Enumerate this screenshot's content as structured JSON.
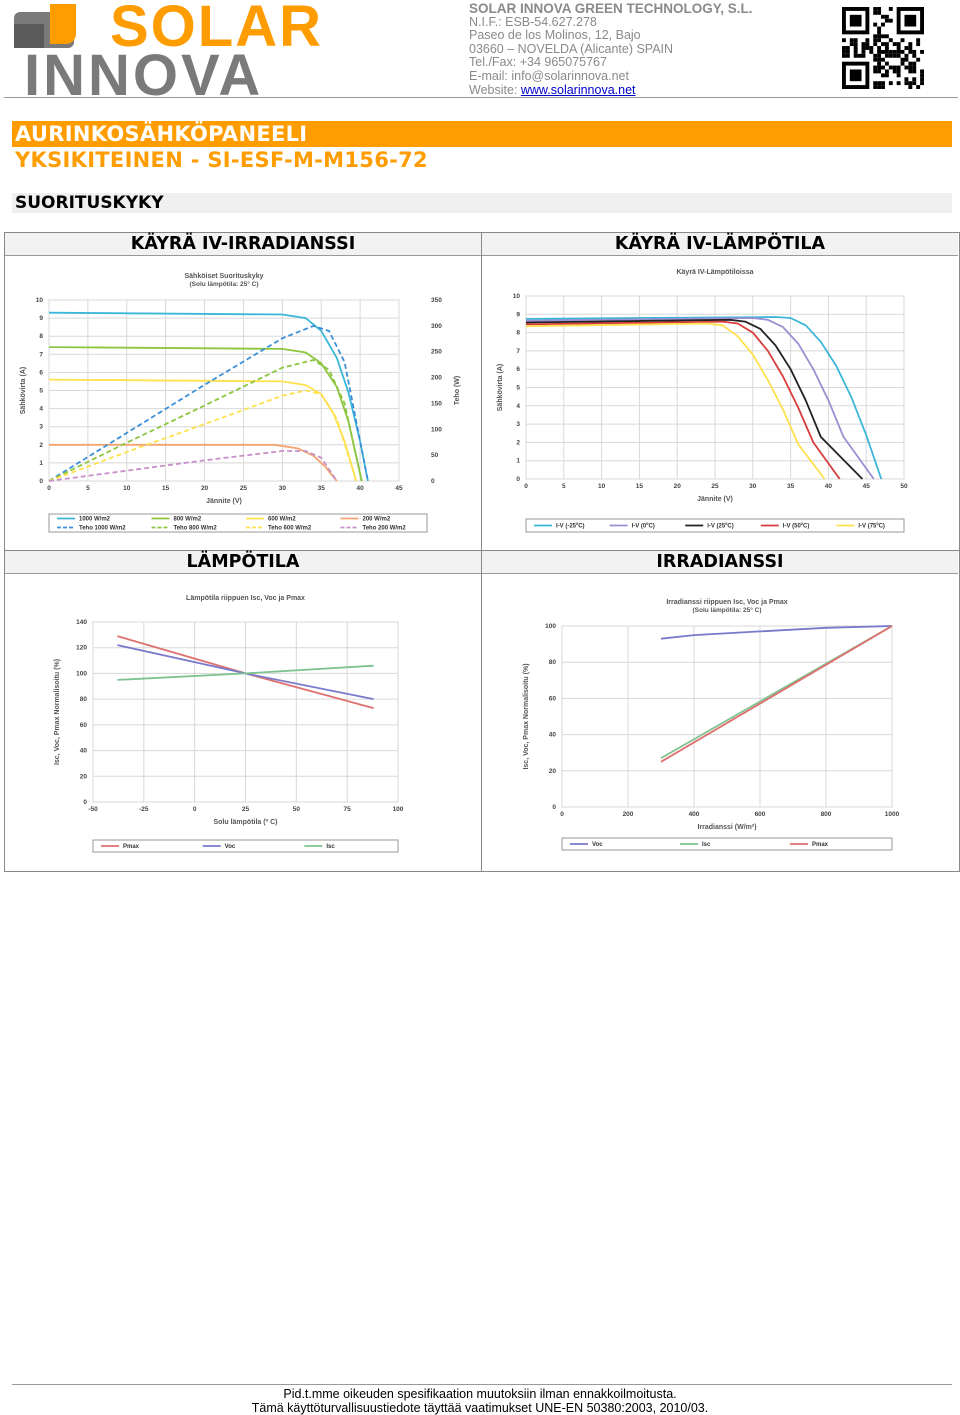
{
  "header": {
    "logo_top": "SOLAR",
    "logo_bottom": "INNOVA",
    "company_name": "SOLAR INNOVA GREEN TECHNOLOGY, S.L.",
    "nif": "N.I.F.: ESB-54.627.278",
    "address1": "Paseo de los Molinos, 12, Bajo",
    "address2": "03660 – NOVELDA (Alicante) SPAIN",
    "phone": "Tel./Fax: +34 965075767",
    "email": "E-mail: info@solarinnova.net",
    "website_label": "Website: ",
    "website_link": "www.solarinnova.net",
    "qr_icon": "qr-code-icon"
  },
  "title": {
    "line1": "AURINKOSÄHKÖPANEELI",
    "line2": "YKSIKITEINEN - SI-ESF-M-M156-72"
  },
  "section_title": "SUORITUSKYKY",
  "panels": {
    "iv_irradiance_header": "KÄYRÄ IV-IRRADIANSSI",
    "iv_temperature_header": "KÄYRÄ IV-LÄMPÖTILA",
    "temperature_header": "LÄMPÖTILA",
    "irradiance_header": "IRRADIANSSI"
  },
  "colors": {
    "orange": "#ff9c00",
    "grey_logo": "#7a7a7a"
  },
  "footer": {
    "line1": "Pid.t.mme oikeuden spesifikaation muutoksiin ilman ennakkoilmoitusta.",
    "line2": "Tämä käyttöturvallisuustiedote täyttää vaatimukset UNE-EN 50380:2003, 2010/03."
  },
  "chart_data": [
    {
      "id": "iv-irradiance",
      "type": "line",
      "title": "Sähköiset Suorituskyky",
      "subtitle": "(Solu lämpötila: 25° C)",
      "xlabel": "Jännite (V)",
      "ylabel": "Sähkövirta (A)",
      "y2label": "Teho (W)",
      "xlim": [
        0,
        45
      ],
      "ylim": [
        0,
        10
      ],
      "y2lim": [
        0,
        350
      ],
      "xticks": [
        "0",
        "5",
        "10",
        "15",
        "20",
        "25",
        "30",
        "35",
        "40",
        "45"
      ],
      "yticks": [
        "0",
        "1",
        "2",
        "3",
        "4",
        "5",
        "6",
        "7",
        "8",
        "9",
        "10"
      ],
      "y2ticks": [
        "0",
        "50",
        "100",
        "150",
        "200",
        "250",
        "300",
        "350"
      ],
      "legend": [
        "1000 W/m2",
        "800 W/m2",
        "600 W/m2",
        "200 W/m2",
        "Teho 1000 W/m2",
        "Teho 800 W/m2",
        "Teho 600 W/m2",
        "Teho 200 W/m2"
      ],
      "legend_placement": "bottom",
      "series": [
        {
          "name": "1000 W/m2",
          "color": "#3cb6d8",
          "style": "solid",
          "axis": "y",
          "x": [
            0,
            30,
            33,
            35,
            37,
            38.5,
            40,
            41
          ],
          "y": [
            9.3,
            9.2,
            9.0,
            8.3,
            6.8,
            4.9,
            2.2,
            0
          ]
        },
        {
          "name": "800 W/m2",
          "color": "#8cc63f",
          "style": "solid",
          "axis": "y",
          "x": [
            0,
            30,
            33,
            35,
            37,
            38.5,
            40.2
          ],
          "y": [
            7.4,
            7.3,
            7.1,
            6.5,
            5.2,
            3.3,
            0
          ]
        },
        {
          "name": "600 W/m2",
          "color": "#ffe14d",
          "style": "solid",
          "axis": "y",
          "x": [
            0,
            30,
            33,
            35,
            36.5,
            38,
            39.5
          ],
          "y": [
            5.6,
            5.5,
            5.3,
            4.8,
            3.8,
            2.2,
            0
          ]
        },
        {
          "name": "200 W/m2",
          "color": "#f4a470",
          "style": "solid",
          "axis": "y",
          "x": [
            0,
            29,
            32,
            34,
            35.5,
            37
          ],
          "y": [
            2.0,
            2.0,
            1.8,
            1.4,
            0.8,
            0
          ]
        },
        {
          "name": "Teho 1000 W/m2",
          "color": "#3c8fd8",
          "style": "dashed",
          "axis": "y2",
          "x": [
            0,
            10,
            20,
            30,
            34,
            36,
            38,
            41
          ],
          "y": [
            0,
            93,
            186,
            276,
            300,
            290,
            230,
            0
          ]
        },
        {
          "name": "Teho 800 W/m2",
          "color": "#8cc63f",
          "style": "dashed",
          "axis": "y2",
          "x": [
            0,
            10,
            20,
            30,
            34,
            36,
            38,
            40.2
          ],
          "y": [
            0,
            74,
            146,
            219,
            234,
            215,
            150,
            0
          ]
        },
        {
          "name": "Teho 600 W/m2",
          "color": "#ffe14d",
          "style": "dashed",
          "axis": "y2",
          "x": [
            0,
            10,
            20,
            30,
            33,
            35,
            37,
            39.5
          ],
          "y": [
            0,
            56,
            110,
            165,
            175,
            168,
            120,
            0
          ]
        },
        {
          "name": "Teho 200 W/m2",
          "color": "#c890c8",
          "style": "dashed",
          "axis": "y2",
          "x": [
            0,
            10,
            20,
            30,
            33,
            35,
            37
          ],
          "y": [
            0,
            20,
            40,
            58,
            58,
            45,
            0
          ]
        }
      ]
    },
    {
      "id": "iv-temperature",
      "type": "line",
      "title": "Käyrä IV-Lämpötiloissa",
      "xlabel": "Jännite (V)",
      "ylabel": "Sähkövirta (A)",
      "xlim": [
        0,
        50
      ],
      "ylim": [
        0,
        10
      ],
      "xticks": [
        "0",
        "5",
        "10",
        "15",
        "20",
        "25",
        "30",
        "35",
        "40",
        "45",
        "50"
      ],
      "yticks": [
        "0",
        "1",
        "2",
        "3",
        "4",
        "5",
        "6",
        "7",
        "8",
        "9",
        "10"
      ],
      "legend": [
        "I-V (-25ºC)",
        "I-V (0ºC)",
        "I-V (25ºC)",
        "I-V (50ºC)",
        "I-V (75ºC)"
      ],
      "legend_placement": "bottom",
      "series": [
        {
          "name": "I-V (-25ºC)",
          "color": "#3cb6d8",
          "x": [
            0,
            33,
            35,
            37,
            39,
            41,
            43,
            45,
            47
          ],
          "y": [
            8.75,
            8.85,
            8.8,
            8.4,
            7.5,
            6.2,
            4.5,
            2.4,
            0
          ]
        },
        {
          "name": "I-V (0ºC)",
          "color": "#9a8fd0",
          "x": [
            0,
            30,
            32,
            34,
            36,
            38,
            40,
            42,
            46
          ],
          "y": [
            8.65,
            8.8,
            8.7,
            8.3,
            7.4,
            6.0,
            4.3,
            2.3,
            0
          ]
        },
        {
          "name": "I-V (25ºC)",
          "color": "#222222",
          "x": [
            0,
            27,
            29,
            31,
            33,
            35,
            37,
            39,
            44.5
          ],
          "y": [
            8.55,
            8.7,
            8.6,
            8.2,
            7.3,
            6.0,
            4.3,
            2.3,
            0
          ]
        },
        {
          "name": "I-V (50ºC)",
          "color": "#d83c3c",
          "x": [
            0,
            26,
            28,
            30,
            32,
            34,
            36,
            38,
            41.5
          ],
          "y": [
            8.45,
            8.6,
            8.5,
            8.0,
            7.0,
            5.6,
            3.9,
            2.0,
            0
          ]
        },
        {
          "name": "I-V (75ºC)",
          "color": "#ffe14d",
          "x": [
            0,
            24,
            26,
            28,
            30,
            32,
            34,
            36,
            39.5
          ],
          "y": [
            8.35,
            8.5,
            8.4,
            7.8,
            6.8,
            5.4,
            3.8,
            1.9,
            0
          ]
        }
      ]
    },
    {
      "id": "temperature",
      "type": "line",
      "title": "Lämpötila riippuen Isc, Voc ja Pmax",
      "xlabel": "Solu lämpötila (º C)",
      "ylabel": "Isc, Voc, Pmax Normalisoitu (%)",
      "xlim": [
        -50,
        100
      ],
      "ylim": [
        0,
        140
      ],
      "xticks": [
        "-50",
        "-25",
        "0",
        "25",
        "50",
        "75",
        "100"
      ],
      "yticks": [
        "0",
        "20",
        "40",
        "60",
        "80",
        "100",
        "120",
        "140"
      ],
      "legend": [
        "Pmax",
        "Voc",
        "Isc"
      ],
      "legend_placement": "bottom",
      "series": [
        {
          "name": "Pmax",
          "color": "#e07070",
          "x": [
            -38,
            25,
            88
          ],
          "y": [
            129,
            100,
            73
          ]
        },
        {
          "name": "Voc",
          "color": "#7a7acc",
          "x": [
            -38,
            25,
            88
          ],
          "y": [
            122,
            100,
            80
          ]
        },
        {
          "name": "Isc",
          "color": "#7dc28f",
          "x": [
            -38,
            25,
            88
          ],
          "y": [
            95,
            100,
            106
          ]
        }
      ]
    },
    {
      "id": "irradiance",
      "type": "line",
      "title": "Irradianssi riippuen Isc, Voc ja Pmax",
      "subtitle": "(Solu lämpötila: 25° C)",
      "xlabel": "Irradianssi (W/m²)",
      "ylabel": "Isc, Voc, Pmax Normalisoitu (%)",
      "xlim": [
        0,
        1000
      ],
      "ylim": [
        0,
        100
      ],
      "xticks": [
        "0",
        "200",
        "400",
        "600",
        "800",
        "1000"
      ],
      "yticks": [
        "0",
        "20",
        "40",
        "60",
        "80",
        "100"
      ],
      "legend": [
        "Voc",
        "Isc",
        "Pmax"
      ],
      "legend_placement": "bottom",
      "series": [
        {
          "name": "Voc",
          "color": "#7a7acc",
          "x": [
            300,
            400,
            600,
            800,
            1000
          ],
          "y": [
            93,
            95,
            97,
            99,
            100
          ]
        },
        {
          "name": "Isc",
          "color": "#7dc28f",
          "x": [
            300,
            1000
          ],
          "y": [
            27,
            100
          ]
        },
        {
          "name": "Pmax",
          "color": "#e07070",
          "x": [
            300,
            1000
          ],
          "y": [
            25,
            100
          ]
        }
      ]
    }
  ]
}
